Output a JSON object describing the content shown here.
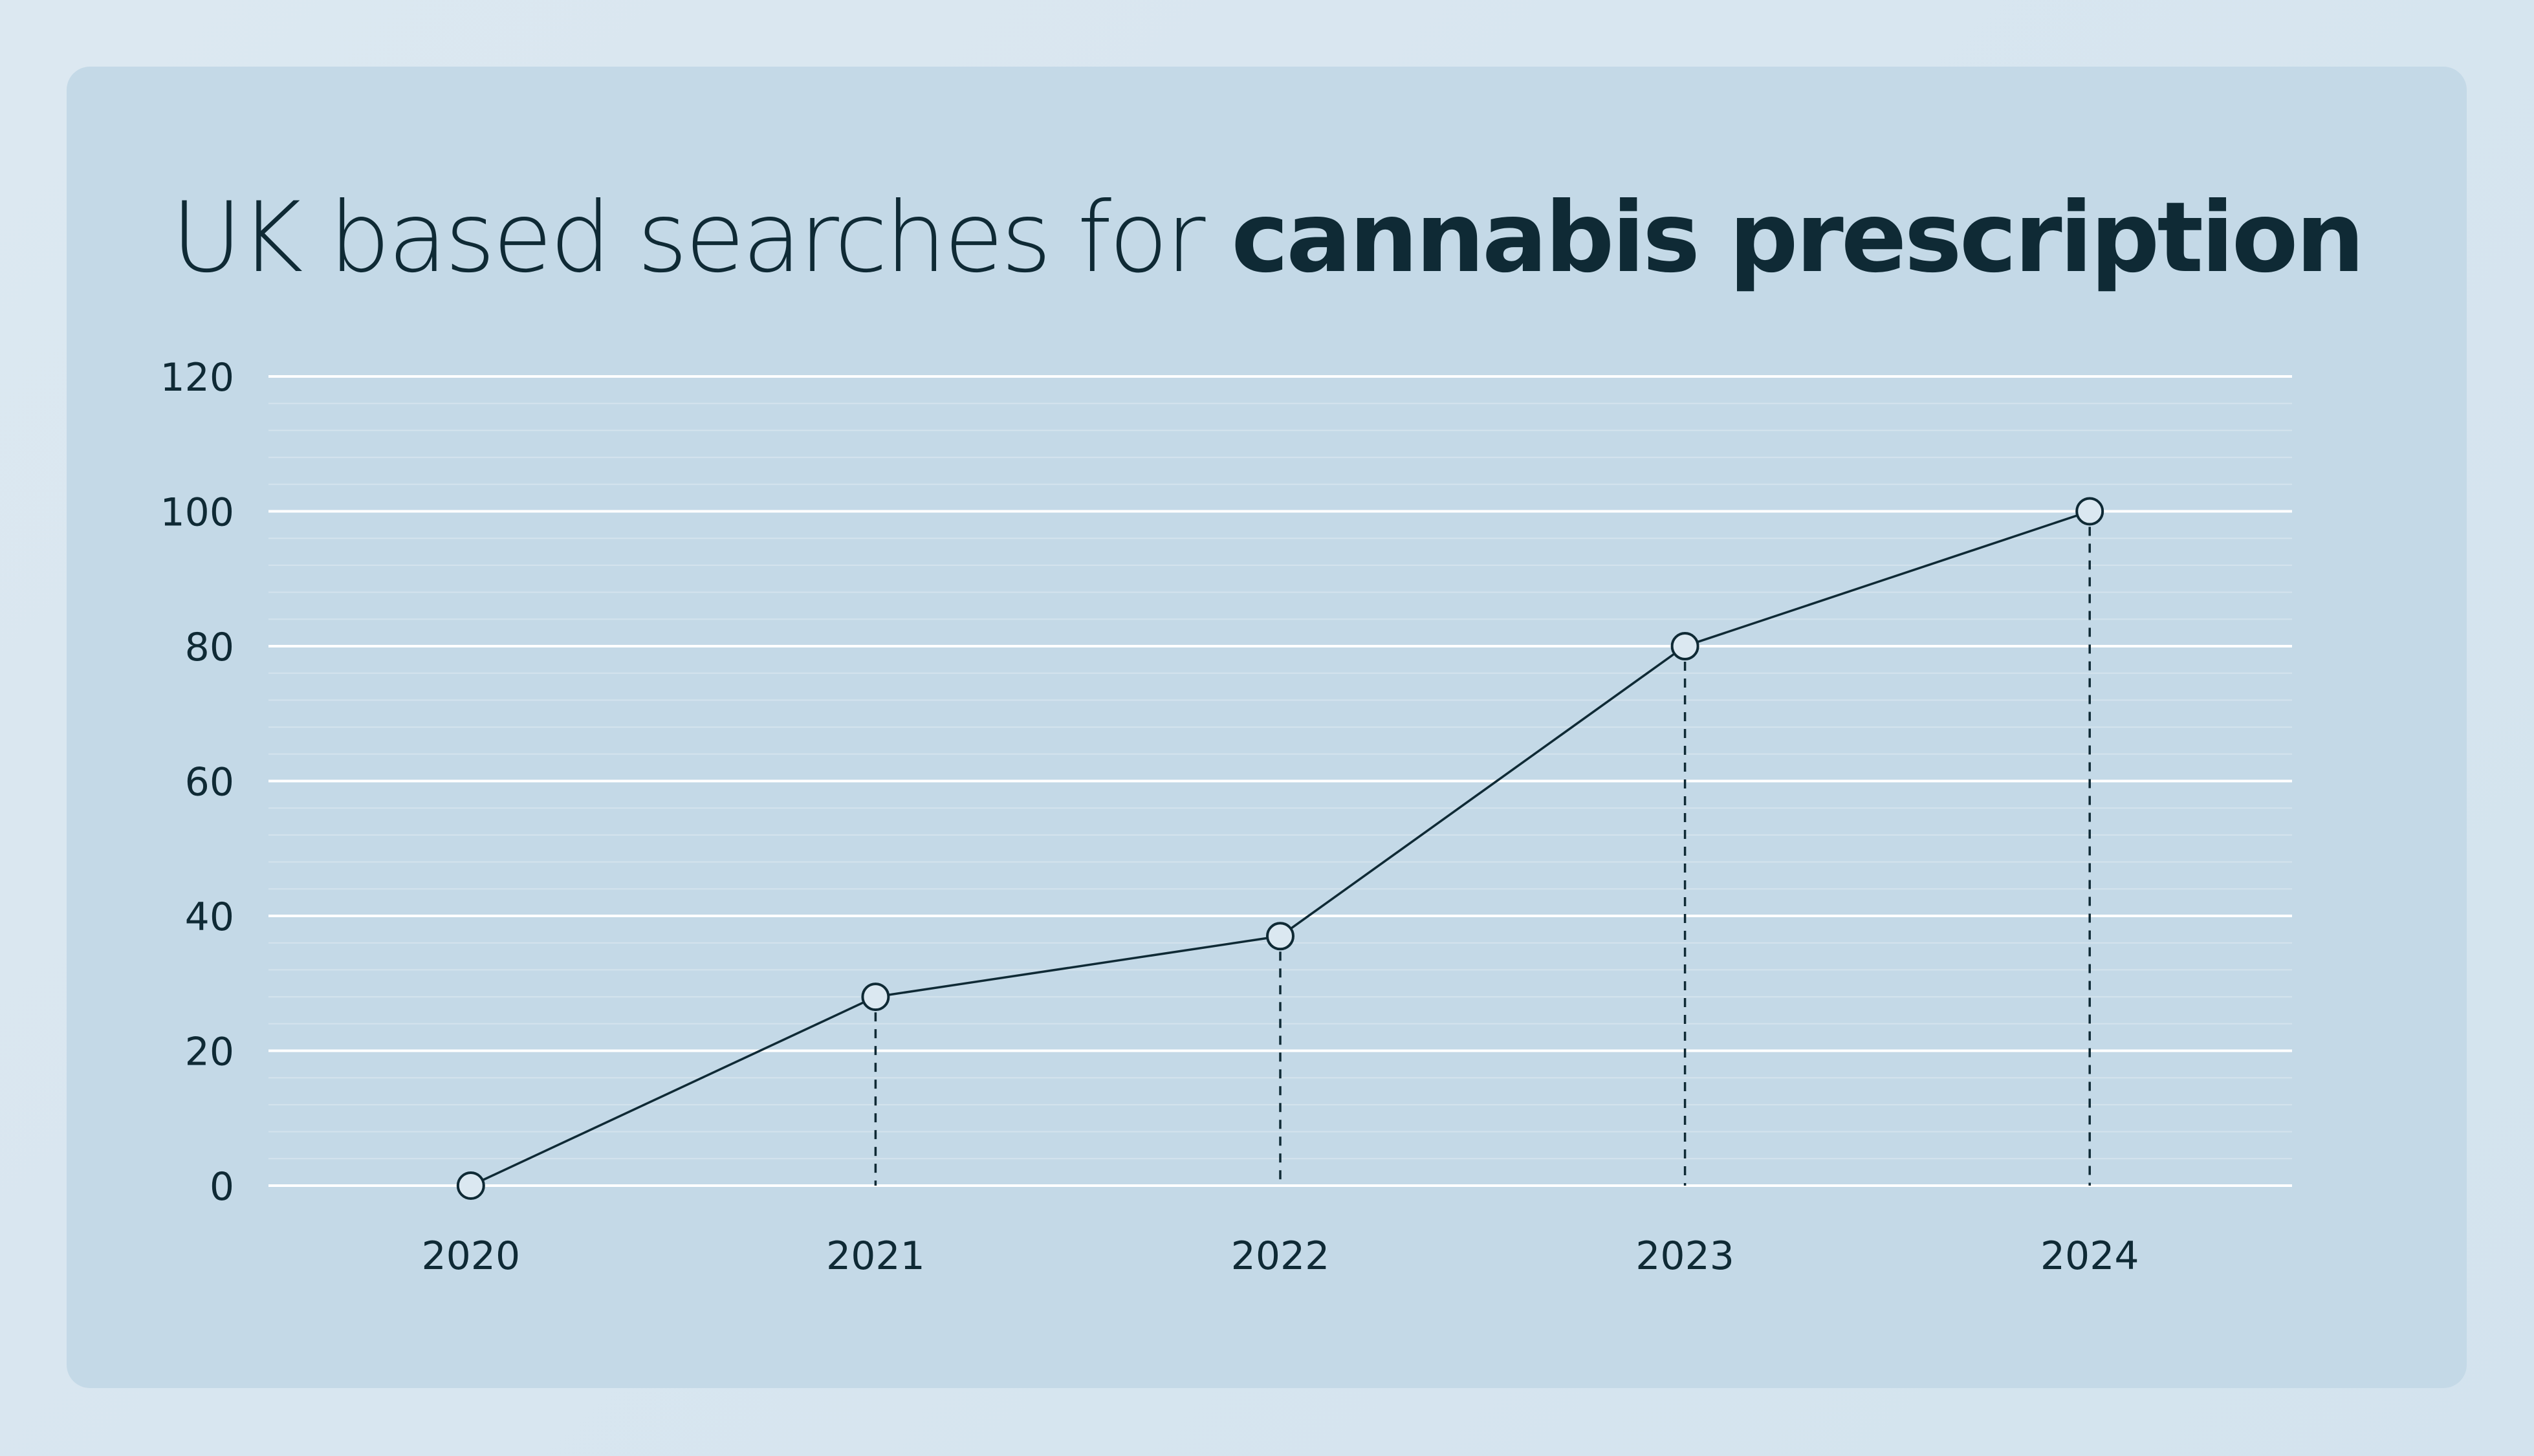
{
  "chart_data": {
    "type": "line",
    "title_regular": "UK based searches for ",
    "title_bold": "cannabis prescription",
    "xlabel": "",
    "ylabel": "",
    "categories": [
      "2020",
      "2021",
      "2022",
      "2023",
      "2024"
    ],
    "series": [
      {
        "values": [
          0,
          28,
          37,
          80,
          100
        ]
      }
    ],
    "ylim": [
      0,
      120
    ],
    "yticks": [
      "0",
      "20",
      "40",
      "60",
      "80",
      "100",
      "120"
    ],
    "grid": true,
    "colors": {
      "line": "#0f2a35",
      "marker_fill": "#dbe8f1",
      "gridline": "#ffffff",
      "text": "#0f2a35"
    }
  }
}
